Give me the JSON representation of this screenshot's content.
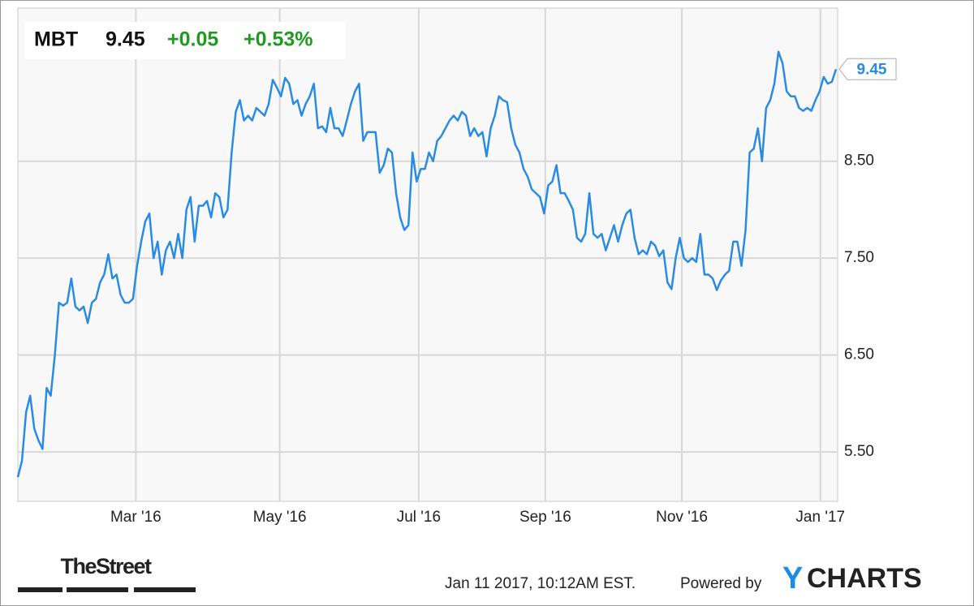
{
  "chart_data": {
    "type": "line",
    "ticker": "MBT",
    "change": "+0.05",
    "change_pct": "+0.53%",
    "color": "#2a8be3",
    "change_color": "#1f9a1f",
    "values": [
      5.24,
      5.41,
      5.91,
      6.08,
      5.74,
      5.62,
      5.53,
      6.16,
      6.08,
      6.5,
      7.04,
      7.01,
      7.04,
      7.29,
      7.0,
      6.96,
      7.0,
      6.83,
      7.04,
      7.08,
      7.25,
      7.33,
      7.54,
      7.29,
      7.33,
      7.12,
      7.04,
      7.04,
      7.08,
      7.42,
      7.67,
      7.88,
      7.96,
      7.5,
      7.67,
      7.33,
      7.58,
      7.67,
      7.5,
      7.75,
      7.5,
      8.0,
      8.13,
      7.67,
      8.04,
      8.04,
      8.09,
      7.92,
      8.17,
      8.13,
      7.92,
      8.0,
      8.59,
      9.01,
      9.13,
      8.92,
      8.97,
      8.92,
      9.05,
      9.01,
      8.97,
      9.09,
      9.34,
      9.26,
      9.17,
      9.36,
      9.3,
      9.09,
      9.13,
      8.97,
      9.09,
      9.17,
      9.3,
      8.84,
      8.86,
      8.8,
      9.05,
      8.84,
      8.84,
      8.76,
      8.92,
      9.09,
      9.22,
      9.3,
      8.71,
      8.8,
      8.8,
      8.8,
      8.38,
      8.46,
      8.63,
      8.59,
      8.17,
      7.92,
      7.79,
      7.84,
      8.59,
      8.29,
      8.42,
      8.42,
      8.59,
      8.5,
      8.71,
      8.76,
      8.84,
      8.92,
      8.97,
      8.92,
      9.01,
      8.97,
      8.76,
      8.84,
      8.76,
      8.8,
      8.55,
      8.84,
      8.97,
      9.17,
      9.13,
      9.11,
      8.84,
      8.67,
      8.59,
      8.42,
      8.34,
      8.21,
      8.17,
      8.13,
      7.96,
      8.25,
      8.29,
      8.46,
      8.17,
      8.17,
      8.09,
      8.0,
      7.71,
      7.67,
      7.75,
      8.17,
      7.75,
      7.71,
      7.75,
      7.58,
      7.71,
      7.84,
      7.67,
      7.84,
      7.96,
      8.0,
      7.71,
      7.54,
      7.58,
      7.54,
      7.67,
      7.63,
      7.52,
      7.58,
      7.25,
      7.18,
      7.5,
      7.71,
      7.5,
      7.46,
      7.5,
      7.46,
      7.75,
      7.33,
      7.33,
      7.29,
      7.17,
      7.27,
      7.33,
      7.37,
      7.67,
      7.67,
      7.42,
      7.79,
      8.59,
      8.63,
      8.84,
      8.5,
      9.05,
      9.13,
      9.3,
      9.63,
      9.51,
      9.22,
      9.17,
      9.17,
      9.05,
      9.02,
      9.05,
      9.02,
      9.13,
      9.22,
      9.37,
      9.3,
      9.32,
      9.45
    ],
    "xlim": [
      0,
      199
    ],
    "xticks": [
      {
        "value": 28.7,
        "label": "Mar '16"
      },
      {
        "value": 63.7,
        "label": "May '16"
      },
      {
        "value": 97.5,
        "label": "Jul '16"
      },
      {
        "value": 128.3,
        "label": "Sep '16"
      },
      {
        "value": 161.5,
        "label": "Nov '16"
      },
      {
        "value": 195.2,
        "label": "Jan '17"
      }
    ],
    "ylim": [
      4.99,
      10.08
    ],
    "yticks": [
      {
        "value": 5.5,
        "label": "5.50"
      },
      {
        "value": 6.5,
        "label": "6.50"
      },
      {
        "value": 7.5,
        "label": "7.50"
      },
      {
        "value": 8.5,
        "label": "8.50"
      }
    ],
    "grid": true
  },
  "footer": {
    "publisher": "TheStreet",
    "timestamp": "Jan 11 2017, 10:12AM EST.",
    "powered_by": "Powered by",
    "brand_first": "Y",
    "brand_rest": "CHARTS"
  }
}
